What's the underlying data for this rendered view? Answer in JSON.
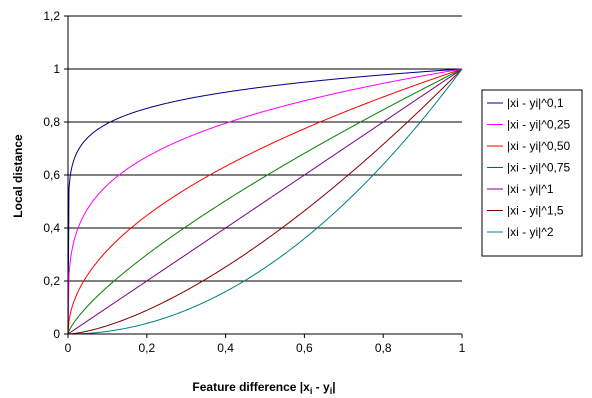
{
  "chart_data": {
    "type": "line",
    "title": "",
    "xlabel": "Feature difference |xi - yi|",
    "ylabel": "Local distance",
    "xlim": [
      0,
      1
    ],
    "ylim": [
      0,
      1.2
    ],
    "x_ticks": [
      0,
      0.2,
      0.4,
      0.6,
      0.8,
      1
    ],
    "x_tick_labels": [
      "0",
      "0,2",
      "0,4",
      "0,6",
      "0,8",
      "1"
    ],
    "y_ticks": [
      0,
      0.2,
      0.4,
      0.6,
      0.8,
      1,
      1.2
    ],
    "y_tick_labels": [
      "0",
      "0,2",
      "0,4",
      "0,6",
      "0,8",
      "1",
      "1,2"
    ],
    "grid": "horizontal",
    "legend_position": "right",
    "function": "y = x^p",
    "series": [
      {
        "name": "|xi - yi|^0,1",
        "exponent": 0.1,
        "color": "#000080"
      },
      {
        "name": "|xi - yi|^0,25",
        "exponent": 0.25,
        "color": "#ff00ff"
      },
      {
        "name": "|xi - yi|^0,50",
        "exponent": 0.5,
        "color": "#ff0000"
      },
      {
        "name": "|xi - yi|^0,75",
        "exponent": 0.75,
        "color": "#008000"
      },
      {
        "name": "|xi - yi|^1",
        "exponent": 1,
        "color": "#800080"
      },
      {
        "name": "|xi - yi|^1,5",
        "exponent": 1.5,
        "color": "#800000"
      },
      {
        "name": "|xi - yi|^2",
        "exponent": 2,
        "color": "#008080"
      }
    ]
  }
}
